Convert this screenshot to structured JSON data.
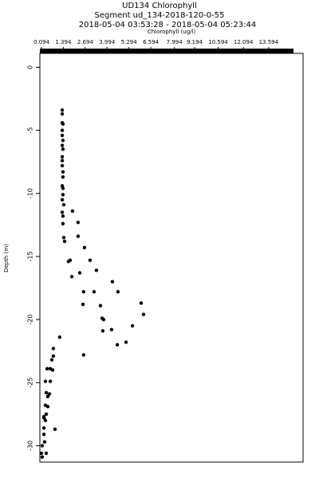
{
  "chart_data": {
    "type": "scatter",
    "title": "UD134 Chlorophyll",
    "subtitle": "Segment ud_134-2018-120-0-55",
    "time_range": "2018-05-04 03:53:28 - 2018-05-04 05:23:44",
    "xlabel": "Chlorophyll (ug/l)",
    "ylabel": "Depth (m)",
    "xlim": [
      0.0,
      15.64
    ],
    "ylim": [
      -31.3,
      1.1
    ],
    "xticks": [
      0.094,
      1.394,
      2.694,
      3.994,
      5.294,
      6.594,
      7.994,
      9.194,
      10.594,
      12.094,
      13.594
    ],
    "yticks": [
      0,
      -5,
      -10,
      -15,
      -20,
      -25,
      -30
    ],
    "color": "#000000",
    "x": [
      1.33,
      1.33,
      1.33,
      1.37,
      1.33,
      1.33,
      1.37,
      1.33,
      1.37,
      1.33,
      1.33,
      1.33,
      1.37,
      1.37,
      1.33,
      1.37,
      1.37,
      1.33,
      1.42,
      1.33,
      1.37,
      1.94,
      1.37,
      2.27,
      1.42,
      2.27,
      1.47,
      2.65,
      1.8,
      1.7,
      2.98,
      2.37,
      1.9,
      3.36,
      2.6,
      3.22,
      4.31,
      4.64,
      2.56,
      3.6,
      6.02,
      3.7,
      6.16,
      3.79,
      5.5,
      4.26,
      3.74,
      5.12,
      4.6,
      1.18,
      2.6,
      0.8,
      0.8,
      0.71,
      0.62,
      0.76,
      0.43,
      0.33,
      0.62,
      0.38,
      0.57,
      0.47,
      0.33,
      0.47,
      0.38,
      0.24,
      0.24,
      0.33,
      0.24,
      0.9,
      0.24,
      0.28,
      0.14,
      0.09,
      0.38,
      0.14
    ],
    "y": [
      -3.4,
      -3.7,
      -4.4,
      -4.5,
      -5.0,
      -5.4,
      -5.8,
      -6.2,
      -6.5,
      -7.1,
      -7.4,
      -7.8,
      -8.3,
      -8.7,
      -9.4,
      -9.6,
      -10.1,
      -10.5,
      -10.9,
      -11.5,
      -11.8,
      -11.4,
      -12.4,
      -12.3,
      -13.5,
      -13.4,
      -13.8,
      -14.3,
      -15.3,
      -15.4,
      -15.3,
      -16.3,
      -16.6,
      -16.1,
      -17.8,
      -17.8,
      -17.0,
      -17.8,
      -18.8,
      -18.9,
      -18.7,
      -19.9,
      -19.6,
      -20.0,
      -20.5,
      -20.8,
      -20.9,
      -21.8,
      -22.0,
      -21.4,
      -22.8,
      -22.3,
      -22.9,
      -23.2,
      -23.9,
      -24.0,
      -23.9,
      -24.9,
      -24.9,
      -25.8,
      -25.9,
      -26.1,
      -26.8,
      -26.9,
      -27.5,
      -27.7,
      -27.8,
      -28.0,
      -28.6,
      -28.7,
      -29.1,
      -29.7,
      -30.0,
      -30.6,
      -30.6,
      -30.9
    ]
  }
}
